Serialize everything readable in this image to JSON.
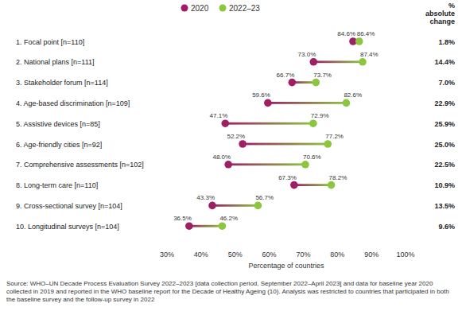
{
  "chart_data": {
    "type": "dumbbell",
    "orientation": "horizontal",
    "x_label": "Percentage of countries",
    "categories": [
      "1. Focal point [n=110]",
      "2. National plans [n=111]",
      "3. Stakeholder forum [n=114]",
      "4. Age-based discrimination [n=109]",
      "5. Assistive devices [n=85]",
      "6. Age-friendly cities [n=92]",
      "7. Comprehensive assessments [n=102]",
      "8. Long-term care [n=110]",
      "9. Cross-sectional survey [n=104]",
      "10. Longitudinal surveys [n=104]"
    ],
    "series": [
      {
        "name": "2020",
        "color": "#9e1f63",
        "marker": "circle",
        "values": [
          84.6,
          73.0,
          66.7,
          59.6,
          47.1,
          52.2,
          48.0,
          67.3,
          43.3,
          36.5
        ],
        "value_labels": [
          "84.6%",
          "73.0%",
          "66.7%",
          "59.6%",
          "47.1%",
          "52.2%",
          "48.0%",
          "67.3%",
          "43.3%",
          "36.5%"
        ]
      },
      {
        "name": "2022–23",
        "color": "#8cc63f",
        "marker": "circle",
        "values": [
          86.4,
          87.4,
          73.7,
          82.6,
          72.9,
          77.2,
          70.6,
          78.2,
          56.7,
          46.2
        ],
        "value_labels": [
          "86.4%",
          "87.4%",
          "73.7%",
          "82.6%",
          "72.9%",
          "77.2%",
          "70.6%",
          "78.2%",
          "56.7%",
          "46.2%"
        ]
      }
    ],
    "absolute_change": {
      "title": "% absolute change",
      "values": [
        1.8,
        14.4,
        7.0,
        22.9,
        25.9,
        25.0,
        22.5,
        10.9,
        13.5,
        9.6
      ],
      "value_labels": [
        "1.8%",
        "14.4%",
        "7.0%",
        "22.9%",
        "25.9%",
        "25.0%",
        "22.5%",
        "10.9%",
        "13.5%",
        "9.6%"
      ]
    },
    "xlim": [
      30,
      100
    ],
    "xticks": [
      {
        "value": 30,
        "label": "30%"
      },
      {
        "value": 40,
        "label": "40%"
      },
      {
        "value": 50,
        "label": "50%"
      },
      {
        "value": 60,
        "label": "60%"
      },
      {
        "value": 70,
        "label": "70%"
      },
      {
        "value": 80,
        "label": "80%"
      },
      {
        "value": 90,
        "label": "90%"
      },
      {
        "value": 100,
        "label": "100%"
      }
    ],
    "grid": false,
    "legend": "top",
    "data_labels": true,
    "source": "Source: WHO–UN Decade Process Evaluation Survey 2022–2023 [data collection period, September 2022–April 2023] and data for baseline year 2020 collected in 2019 and reported in the WHO baseline report for the Decade of Healthy Ageing (10). Analysis was restricted to countries that participated in both the baseline survey and the follow-up survey in 2022"
  }
}
